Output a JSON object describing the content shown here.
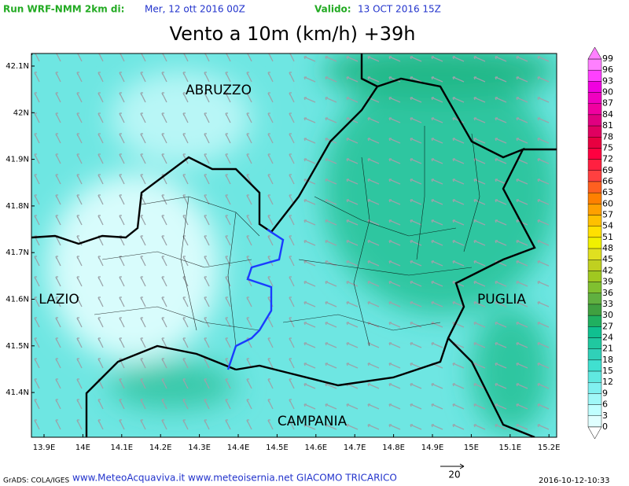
{
  "header": {
    "run_label": "Run WRF-NMM 2km di:",
    "run_date": "Mer, 12 ott 2016 00Z",
    "valid_label": "Valido:",
    "valid_date": "13 OCT 2016 15Z",
    "title": "Vento a 10m (km/h) +39h"
  },
  "map": {
    "lat_labels": [
      "42.1N",
      "42N",
      "41.9N",
      "41.8N",
      "41.7N",
      "41.6N",
      "41.5N",
      "41.4N"
    ],
    "lon_labels": [
      "13.9E",
      "14E",
      "14.1E",
      "14.2E",
      "14.3E",
      "14.4E",
      "14.5E",
      "14.6E",
      "14.7E",
      "14.8E",
      "14.9E",
      "15E",
      "15.1E",
      "15.2E"
    ],
    "regions": [
      "ABRUZZO",
      "LAZIO",
      "PUGLIA",
      "CAMPANIA"
    ]
  },
  "colorbar": {
    "labels": [
      "99",
      "96",
      "93",
      "90",
      "87",
      "84",
      "81",
      "78",
      "75",
      "72",
      "69",
      "66",
      "63",
      "60",
      "57",
      "54",
      "51",
      "48",
      "45",
      "42",
      "39",
      "36",
      "33",
      "30",
      "27",
      "24",
      "21",
      "18",
      "15",
      "12",
      "9",
      "6",
      "3",
      "0"
    ],
    "colors": [
      "#ff80ff",
      "#ff40ff",
      "#f000e0",
      "#f000c0",
      "#f000a0",
      "#e00080",
      "#e00060",
      "#e80040",
      "#ff0040",
      "#ff2040",
      "#ff4040",
      "#ff6020",
      "#ff8000",
      "#ffa000",
      "#ffc000",
      "#ffe000",
      "#f0f000",
      "#e0e020",
      "#c0d020",
      "#a0c820",
      "#80c030",
      "#60b040",
      "#40a040",
      "#20b060",
      "#10c090",
      "#20c8a0",
      "#30d0b8",
      "#40e0d0",
      "#60e8e0",
      "#80f0f0",
      "#a0f8f8",
      "#c0ffff",
      "#e0ffff"
    ]
  },
  "footer": {
    "grads": "GrADS: COLA/IGES",
    "credits": "www.MeteoAcquaviva.it www.meteoisernia.net GIACOMO TRICARICO",
    "scale_label": "20",
    "timestamp": "2016-10-12-10:33"
  }
}
